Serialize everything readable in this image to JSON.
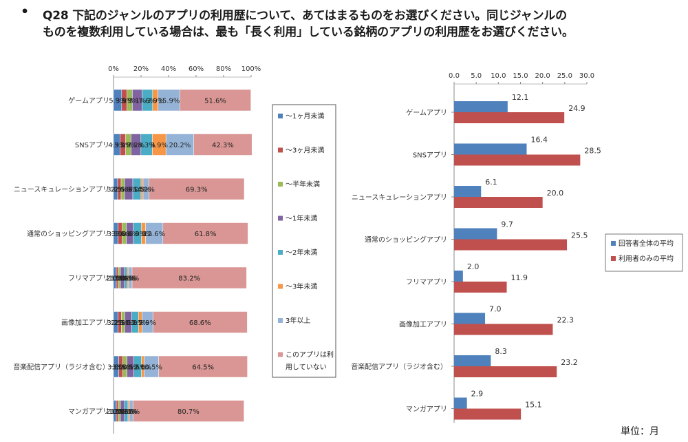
{
  "title": {
    "bullet": "•",
    "line1": "Q28 下記のジャンルのアプリの利用歴について、あてはまるものをお選びください。同じジャンルの",
    "line2": "ものを複数利用している場合は、最も「長く利用」している銘柄のアプリの利用歴をお選びください。"
  },
  "unit_note": "単位：月",
  "chart_data": [
    {
      "type": "bar",
      "stacked": true,
      "orientation": "horizontal",
      "categories": [
        "ゲームアプリ",
        "SNSアプリ",
        "ニュースキュレーションアプリ",
        "通常のショッピングアプリ",
        "フリマアプリ",
        "画像加工アプリ",
        "音楽配信アプリ（ラジオ含む）",
        "マンガアプリ"
      ],
      "xlim": [
        0,
        100
      ],
      "xticks": [
        "0%",
        "20%",
        "40%",
        "60%",
        "80%",
        "100%"
      ],
      "legend_position": "right",
      "series": [
        {
          "name": "～1ヶ月未満",
          "color": "#4f81bd",
          "values": [
            5.9,
            4.9,
            3.0,
            3.3,
            2.0,
            3.2,
            3.8,
            2.0
          ],
          "labels": [
            "5.9%",
            "4.9%",
            "3.0%",
            "3.3%",
            "2.0%",
            "3.2%",
            "3.8%",
            "2.0%"
          ]
        },
        {
          "name": "～3ヶ月未満",
          "color": "#c0504d",
          "values": [
            3.9,
            3.9,
            2.5,
            3.0,
            1.5,
            2.5,
            3.0,
            1.5
          ],
          "labels": [
            "3.9%",
            "3.9%",
            "2.5%",
            "3.0%",
            "1.5%",
            "2.5%",
            "3.0%",
            "1.5%"
          ]
        },
        {
          "name": "～半年未満",
          "color": "#9bbb59",
          "values": [
            3.9,
            3.9,
            2.5,
            3.0,
            1.5,
            2.5,
            3.0,
            1.5
          ],
          "labels": [
            "3.9%",
            "3.9%",
            "2.5%",
            "3.0%",
            "1.5%",
            "2.5%",
            "3.0%",
            "1.5%"
          ]
        },
        {
          "name": "～1年未満",
          "color": "#8064a2",
          "values": [
            7.1,
            7.2,
            6.0,
            5.0,
            3.0,
            5.0,
            5.0,
            3.0
          ],
          "labels": [
            "7.1%",
            "7.2%",
            "6.0%",
            "5.0%",
            "3.0%",
            "5.0%",
            "5.0%",
            "3.0%"
          ]
        },
        {
          "name": "～2年未満",
          "color": "#4bacc6",
          "values": [
            7.6,
            8.3,
            6.0,
            6.0,
            2.0,
            5.0,
            5.5,
            2.5
          ],
          "labels": [
            "7.6%",
            "8.3%",
            "6.0%",
            "6.0%",
            "2.0%",
            "5.0%",
            "5.5%",
            "2.5%"
          ]
        },
        {
          "name": "～3年未満",
          "color": "#f79646",
          "values": [
            3.9,
            9.9,
            1.5,
            3.0,
            1.0,
            2.5,
            2.0,
            1.0
          ],
          "labels": [
            "3.9%",
            "9.9%",
            "1.5%",
            "3.0%",
            "1.0%",
            "2.5%",
            "2.0%",
            "1.0%"
          ]
        },
        {
          "name": "3年以上",
          "color": "#95b3d7",
          "values": [
            15.9,
            20.2,
            4.2,
            12.6,
            2.5,
            7.9,
            10.5,
            2.6
          ],
          "labels": [
            "15.9%",
            "20.2%",
            "4.2%",
            "12.6%",
            "2.5%",
            "7.9%",
            "10.5%",
            "2.6%"
          ]
        },
        {
          "name": "このアプリは利用していない",
          "color": "#d99694",
          "values": [
            51.6,
            42.3,
            69.3,
            61.8,
            83.2,
            68.6,
            64.5,
            80.7
          ],
          "labels": [
            "51.6%",
            "42.3%",
            "69.3%",
            "61.8%",
            "83.2%",
            "68.6%",
            "64.5%",
            "80.7%"
          ]
        }
      ]
    },
    {
      "type": "bar",
      "orientation": "horizontal",
      "categories": [
        "ゲームアプリ",
        "SNSアプリ",
        "ニュースキュレーションアプリ",
        "通常のショッピングアプリ",
        "フリマアプリ",
        "画像加工アプリ",
        "音楽配信アプリ（ラジオ含む）",
        "マンガアプリ"
      ],
      "xlim": [
        0,
        30
      ],
      "xticks": [
        "0.0",
        "5.0",
        "10.0",
        "15.0",
        "20.0",
        "25.0",
        "30.0"
      ],
      "legend_position": "right",
      "series": [
        {
          "name": "回答者全体の平均",
          "color": "#4f81bd",
          "values": [
            12.1,
            16.4,
            6.1,
            9.7,
            2.0,
            7.0,
            8.3,
            2.9
          ],
          "labels": [
            "12.1",
            "16.4",
            "6.1",
            "9.7",
            "2.0",
            "7.0",
            "8.3",
            "2.9"
          ]
        },
        {
          "name": "利用者のみの平均",
          "color": "#c0504d",
          "values": [
            24.9,
            28.5,
            20.0,
            25.5,
            11.9,
            22.3,
            23.2,
            15.1
          ],
          "labels": [
            "24.9",
            "28.5",
            "20.0",
            "25.5",
            "11.9",
            "22.3",
            "23.2",
            "15.1"
          ]
        }
      ]
    }
  ]
}
